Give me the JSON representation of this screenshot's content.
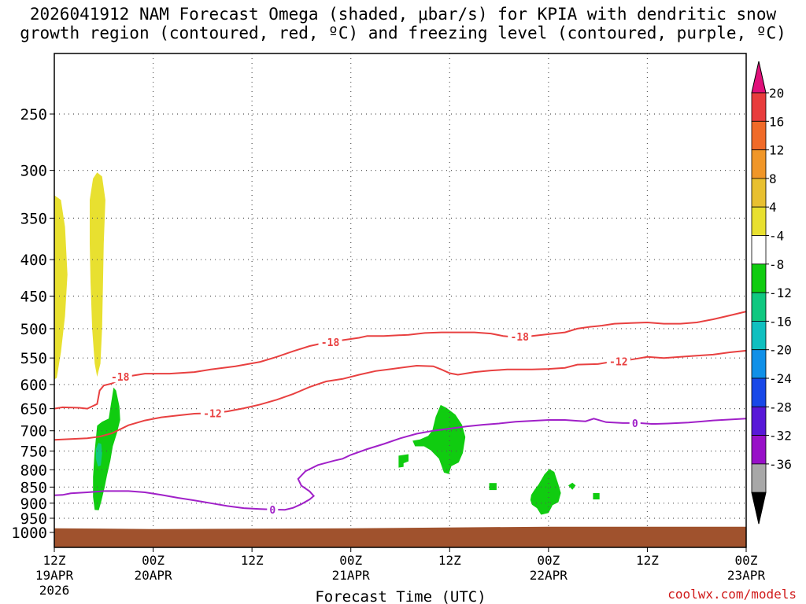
{
  "title_line1": "2026041912 NAM Forecast Omega (shaded, μbar/s) for KPIA with dendritic snow",
  "title_line2": "growth region (contoured, red, ºC) and freezing level (contoured, purple, ºC)",
  "credit": "coolwx.com/models",
  "chart_data": {
    "type": "time-height cross-section",
    "title": "2026041912 NAM Forecast Omega (shaded, μbar/s) for KPIA with dendritic snow growth region (contoured, red, ºC) and freezing level (contoured, purple, ºC)",
    "xlabel": "Forecast Time (UTC)",
    "ylabel": "",
    "x_ticks": [
      {
        "hour": 0,
        "label": "12Z",
        "sub": "19APR",
        "sub2": "2026"
      },
      {
        "hour": 12,
        "label": "00Z",
        "sub": "20APR"
      },
      {
        "hour": 24,
        "label": "12Z",
        "sub": ""
      },
      {
        "hour": 36,
        "label": "00Z",
        "sub": "21APR"
      },
      {
        "hour": 48,
        "label": "12Z",
        "sub": ""
      },
      {
        "hour": 60,
        "label": "00Z",
        "sub": "22APR"
      },
      {
        "hour": 72,
        "label": "12Z",
        "sub": ""
      },
      {
        "hour": 84,
        "label": "00Z",
        "sub": "23APR"
      }
    ],
    "xlim_hours": [
      0,
      84
    ],
    "y_ticks_hpa": [
      250,
      300,
      350,
      400,
      450,
      500,
      550,
      600,
      650,
      700,
      750,
      800,
      850,
      900,
      950,
      1000
    ],
    "ylim_hpa": [
      1020,
      200
    ],
    "y_scale": "log-pressure",
    "grid": true,
    "colorbar": {
      "labels": [
        "20",
        "16",
        "12",
        "8",
        "4",
        "-4",
        "-8",
        "-12",
        "-16",
        "-20",
        "-24",
        "-28",
        "-32",
        "-36"
      ],
      "colors": [
        "#e83c3c",
        "#f06a28",
        "#f09628",
        "#e8c030",
        "#e8e030",
        "#ffffff",
        "#10cc10",
        "#10c880",
        "#10c0c0",
        "#1090e8",
        "#1848e8",
        "#5818d8",
        "#9810c8",
        "#a8a8a8"
      ],
      "top_triangle_color": "#e0107a",
      "bottom_triangle_color": "#000000"
    },
    "contours": [
      {
        "name": "-18",
        "color": "#e84040",
        "points": [
          [
            0,
            650
          ],
          [
            1,
            647
          ],
          [
            3,
            648
          ],
          [
            4,
            650
          ],
          [
            5.2,
            640
          ],
          [
            5.5,
            612
          ],
          [
            6,
            602
          ],
          [
            7,
            598
          ],
          [
            8,
            590
          ],
          [
            9,
            584
          ],
          [
            11,
            579
          ],
          [
            14,
            579
          ],
          [
            17,
            576
          ],
          [
            19,
            571
          ],
          [
            22,
            565
          ],
          [
            25,
            557
          ],
          [
            27,
            548
          ],
          [
            29,
            538
          ],
          [
            31,
            529
          ],
          [
            33,
            523
          ],
          [
            35,
            519
          ],
          [
            37,
            515
          ],
          [
            38,
            512
          ],
          [
            40,
            512
          ],
          [
            43,
            510
          ],
          [
            45,
            507
          ],
          [
            47,
            506
          ],
          [
            51,
            506
          ],
          [
            53,
            508
          ],
          [
            54.5,
            512
          ],
          [
            56,
            514
          ],
          [
            58,
            512
          ],
          [
            60,
            509
          ],
          [
            62,
            506
          ],
          [
            63.5,
            500
          ],
          [
            65,
            497
          ],
          [
            66.5,
            495
          ],
          [
            68,
            492
          ],
          [
            70,
            491
          ],
          [
            72,
            490
          ],
          [
            74,
            492
          ],
          [
            76,
            492
          ],
          [
            78,
            490
          ],
          [
            80,
            485
          ],
          [
            82,
            479
          ],
          [
            84,
            473
          ]
        ],
        "labels": [
          {
            "x": 8,
            "p": 585,
            "text": "-18"
          },
          {
            "x": 33.5,
            "p": 522,
            "text": "-18"
          },
          {
            "x": 56.5,
            "p": 513,
            "text": "-18"
          }
        ]
      },
      {
        "name": "-12",
        "color": "#e84040",
        "points": [
          [
            0,
            722
          ],
          [
            2,
            720
          ],
          [
            4,
            718
          ],
          [
            5.5,
            714
          ],
          [
            7,
            706
          ],
          [
            9,
            687
          ],
          [
            11,
            676
          ],
          [
            13,
            669
          ],
          [
            15,
            665
          ],
          [
            17,
            661
          ],
          [
            19,
            660
          ],
          [
            21,
            656
          ],
          [
            23,
            649
          ],
          [
            25,
            641
          ],
          [
            27,
            631
          ],
          [
            29,
            619
          ],
          [
            31,
            605
          ],
          [
            33,
            594
          ],
          [
            35,
            589
          ],
          [
            37,
            581
          ],
          [
            39,
            574
          ],
          [
            41,
            570
          ],
          [
            44,
            564
          ],
          [
            46,
            565
          ],
          [
            47,
            571
          ],
          [
            48,
            578
          ],
          [
            49,
            581
          ],
          [
            51,
            576
          ],
          [
            53,
            573
          ],
          [
            55,
            571
          ],
          [
            58,
            571
          ],
          [
            60,
            570
          ],
          [
            62,
            568
          ],
          [
            63.5,
            562
          ],
          [
            66,
            561
          ],
          [
            68,
            556
          ],
          [
            70,
            553
          ],
          [
            72,
            548
          ],
          [
            74,
            550
          ],
          [
            76,
            548
          ],
          [
            78,
            546
          ],
          [
            80,
            544
          ],
          [
            82,
            540
          ],
          [
            84,
            537
          ]
        ],
        "labels": [
          {
            "x": 19.2,
            "p": 660,
            "text": "-12"
          },
          {
            "x": 68.5,
            "p": 556,
            "text": "-12"
          }
        ]
      },
      {
        "name": "0",
        "color": "#a020c8",
        "points": [
          [
            0,
            875
          ],
          [
            1,
            874
          ],
          [
            2,
            869
          ],
          [
            4,
            866
          ],
          [
            6,
            862
          ],
          [
            9,
            862
          ],
          [
            11,
            866
          ],
          [
            13,
            874
          ],
          [
            15,
            883
          ],
          [
            17,
            891
          ],
          [
            19,
            900
          ],
          [
            21,
            909
          ],
          [
            23,
            916
          ],
          [
            25,
            919
          ],
          [
            27,
            921
          ],
          [
            28,
            921.5
          ],
          [
            29,
            915
          ],
          [
            30,
            903
          ],
          [
            31,
            888
          ],
          [
            31.5,
            877
          ],
          [
            31,
            863
          ],
          [
            30,
            846
          ],
          [
            29.6,
            826
          ],
          [
            30.5,
            804
          ],
          [
            32,
            787
          ],
          [
            34,
            775
          ],
          [
            35,
            770
          ],
          [
            36,
            760
          ],
          [
            38,
            745
          ],
          [
            40,
            732
          ],
          [
            42,
            718
          ],
          [
            44,
            707
          ],
          [
            46,
            700
          ],
          [
            48,
            695
          ],
          [
            50,
            690
          ],
          [
            52,
            686
          ],
          [
            54,
            683
          ],
          [
            56,
            679
          ],
          [
            58,
            677
          ],
          [
            60,
            675
          ],
          [
            62,
            675
          ],
          [
            63.5,
            677
          ],
          [
            64.5,
            678
          ],
          [
            65.5,
            672
          ],
          [
            67,
            680
          ],
          [
            69,
            682
          ],
          [
            71,
            682
          ],
          [
            72.5,
            684
          ],
          [
            73,
            684
          ],
          [
            74.5,
            683
          ],
          [
            77,
            681
          ],
          [
            80,
            676
          ],
          [
            84,
            672
          ]
        ],
        "labels": [
          {
            "x": 26.5,
            "p": 921,
            "text": "0"
          },
          {
            "x": 70.5,
            "p": 682,
            "text": "0"
          }
        ]
      }
    ],
    "shaded_regions": [
      {
        "name": "omega-plus-4-a",
        "color": "#e8e030",
        "points": [
          [
            0,
            325
          ],
          [
            0.8,
            330
          ],
          [
            1.3,
            360
          ],
          [
            1.6,
            420
          ],
          [
            1.3,
            480
          ],
          [
            0.8,
            540
          ],
          [
            0.3,
            587
          ],
          [
            0,
            590
          ]
        ]
      },
      {
        "name": "omega-plus-4-b",
        "color": "#e8e030",
        "points": [
          [
            4.3,
            330
          ],
          [
            4.7,
            308
          ],
          [
            5.2,
            302
          ],
          [
            5.8,
            306
          ],
          [
            6.2,
            330
          ],
          [
            6,
            380
          ],
          [
            5.9,
            440
          ],
          [
            5.8,
            500
          ],
          [
            5.6,
            560
          ],
          [
            5.2,
            585
          ],
          [
            4.9,
            560
          ],
          [
            4.6,
            500
          ],
          [
            4.4,
            430
          ],
          [
            4.3,
            380
          ]
        ]
      },
      {
        "name": "omega-minus-4-a",
        "color": "#10cc10",
        "points": [
          [
            5.2,
            688
          ],
          [
            5.8,
            679
          ],
          [
            6.6,
            672
          ],
          [
            6.8,
            648
          ],
          [
            7.2,
            606
          ],
          [
            7.5,
            612
          ],
          [
            7.9,
            645
          ],
          [
            8,
            675
          ],
          [
            7.6,
            706
          ],
          [
            7.1,
            738
          ],
          [
            6.8,
            775
          ],
          [
            6.4,
            815
          ],
          [
            6.1,
            852
          ],
          [
            5.7,
            895
          ],
          [
            5.4,
            923
          ],
          [
            4.9,
            922
          ],
          [
            4.7,
            880
          ],
          [
            4.7,
            820
          ],
          [
            4.9,
            750
          ]
        ]
      },
      {
        "name": "omega-minus-8-a",
        "color": "#10c880",
        "points": [
          [
            5.05,
            745
          ],
          [
            5.35,
            729
          ],
          [
            5.7,
            732
          ],
          [
            5.8,
            755
          ],
          [
            5.65,
            788
          ],
          [
            5.3,
            791
          ],
          [
            5.05,
            770
          ]
        ]
      },
      {
        "name": "omega-minus-4-b",
        "color": "#10cc10",
        "points": [
          [
            45.9,
            699
          ],
          [
            46.3,
            668
          ],
          [
            46.9,
            642
          ],
          [
            47.6,
            648
          ],
          [
            48.7,
            663
          ],
          [
            49.5,
            686
          ],
          [
            49.9,
            715
          ],
          [
            49.6,
            755
          ],
          [
            49.1,
            780
          ],
          [
            48.2,
            790
          ],
          [
            47.9,
            812
          ],
          [
            47.3,
            808
          ],
          [
            46.7,
            770
          ],
          [
            45.7,
            748
          ],
          [
            44.9,
            738
          ],
          [
            43.8,
            738
          ],
          [
            43.5,
            724
          ],
          [
            44.4,
            721
          ],
          [
            45.4,
            712
          ]
        ]
      },
      {
        "name": "omega-minus-4-c",
        "color": "#10cc10",
        "points": [
          [
            41.8,
            762
          ],
          [
            43,
            758
          ],
          [
            43,
            777
          ],
          [
            42.4,
            782
          ],
          [
            42.4,
            792
          ],
          [
            41.8,
            794
          ]
        ]
      },
      {
        "name": "omega-minus-4-d",
        "color": "#10cc10",
        "points": [
          [
            52.8,
            838
          ],
          [
            53.7,
            838
          ],
          [
            53.7,
            859
          ],
          [
            52.8,
            859
          ]
        ]
      },
      {
        "name": "omega-minus-4-e",
        "color": "#10cc10",
        "points": [
          [
            57.9,
            874
          ],
          [
            58.3,
            858
          ],
          [
            58.8,
            842
          ],
          [
            59.5,
            813
          ],
          [
            60.1,
            798
          ],
          [
            60.7,
            806
          ],
          [
            61.2,
            842
          ],
          [
            61.5,
            868
          ],
          [
            61.2,
            897
          ],
          [
            60.5,
            906
          ],
          [
            60,
            932
          ],
          [
            59.1,
            938
          ],
          [
            58.6,
            916
          ],
          [
            58,
            905
          ],
          [
            57.8,
            890
          ]
        ]
      },
      {
        "name": "omega-minus-4-f",
        "color": "#10cc10",
        "points": [
          [
            62.4,
            845
          ],
          [
            62.9,
            837
          ],
          [
            63.3,
            845
          ],
          [
            62.9,
            858
          ]
        ]
      },
      {
        "name": "omega-minus-4-g",
        "color": "#10cc10",
        "points": [
          [
            65.4,
            868
          ],
          [
            66.2,
            868
          ],
          [
            66.2,
            888
          ],
          [
            65.4,
            888
          ]
        ]
      }
    ],
    "ground_pressure_hpa": 985,
    "ground_color": "#a0522d"
  }
}
